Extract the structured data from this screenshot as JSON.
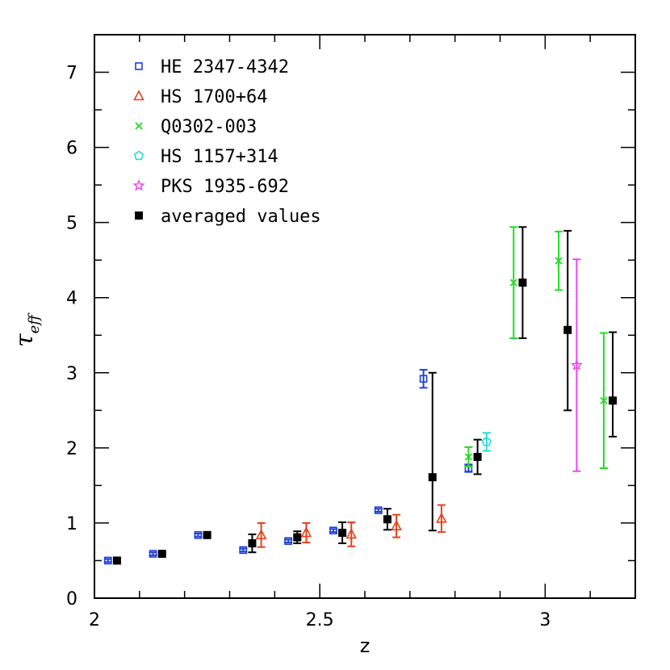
{
  "chart_data": {
    "type": "scatter",
    "title": "",
    "xlabel": "z",
    "ylabel": "τ",
    "ylabel_subscript": "eff",
    "xlim": [
      2.0,
      3.2
    ],
    "ylim": [
      0,
      7.5
    ],
    "x_ticks": [
      2,
      2.5,
      3
    ],
    "x_tick_labels": [
      "2",
      "2.5",
      "3"
    ],
    "y_ticks": [
      0,
      1,
      2,
      3,
      4,
      5,
      6,
      7
    ],
    "y_tick_labels": [
      "0",
      "1",
      "2",
      "3",
      "4",
      "5",
      "6",
      "7"
    ],
    "legend_position": "top-left",
    "series": [
      {
        "name": "HE 2347-4342",
        "color": "#1f3fd8",
        "marker": "open-square",
        "points": [
          {
            "x": 2.03,
            "y": 0.5,
            "err": 0.02
          },
          {
            "x": 2.13,
            "y": 0.59,
            "err": 0.02
          },
          {
            "x": 2.23,
            "y": 0.84,
            "err": 0.02
          },
          {
            "x": 2.33,
            "y": 0.64,
            "err": 0.02
          },
          {
            "x": 2.43,
            "y": 0.76,
            "err": 0.02
          },
          {
            "x": 2.53,
            "y": 0.9,
            "err": 0.02
          },
          {
            "x": 2.63,
            "y": 1.17,
            "err": 0.02
          },
          {
            "x": 2.73,
            "y": 2.92,
            "err": 0.12
          },
          {
            "x": 2.83,
            "y": 1.73,
            "err": 0.05
          }
        ]
      },
      {
        "name": "HS 1700+64",
        "color": "#e8401c",
        "marker": "open-triangle",
        "points": [
          {
            "x": 2.37,
            "y": 0.84,
            "err": 0.16
          },
          {
            "x": 2.47,
            "y": 0.87,
            "err": 0.13
          },
          {
            "x": 2.57,
            "y": 0.85,
            "err": 0.16
          },
          {
            "x": 2.67,
            "y": 0.96,
            "err": 0.15
          },
          {
            "x": 2.77,
            "y": 1.06,
            "err": 0.18
          }
        ]
      },
      {
        "name": "Q0302-003",
        "color": "#22dd22",
        "marker": "cross",
        "points": [
          {
            "x": 2.83,
            "y": 1.88,
            "err": 0.13
          },
          {
            "x": 2.93,
            "y": 4.2,
            "err": 0.74
          },
          {
            "x": 3.03,
            "y": 4.49,
            "err": 0.39
          },
          {
            "x": 3.13,
            "y": 2.63,
            "err": 0.9
          }
        ]
      },
      {
        "name": "HS 1157+314",
        "color": "#22dddd",
        "marker": "open-pentagon",
        "points": [
          {
            "x": 2.87,
            "y": 2.08,
            "err": 0.12
          }
        ]
      },
      {
        "name": "PKS 1935-692",
        "color": "#ee44ee",
        "marker": "open-star",
        "points": [
          {
            "x": 3.07,
            "y": 3.1,
            "err": 1.41
          }
        ]
      },
      {
        "name": "averaged values",
        "color": "#000000",
        "marker": "filled-square",
        "points": [
          {
            "x": 2.05,
            "y": 0.5,
            "err": 0.02
          },
          {
            "x": 2.15,
            "y": 0.59,
            "err": 0.02
          },
          {
            "x": 2.25,
            "y": 0.84,
            "err": 0.02
          },
          {
            "x": 2.35,
            "y": 0.73,
            "err": 0.12
          },
          {
            "x": 2.45,
            "y": 0.81,
            "err": 0.08
          },
          {
            "x": 2.55,
            "y": 0.87,
            "err": 0.14
          },
          {
            "x": 2.65,
            "y": 1.05,
            "err": 0.14
          },
          {
            "x": 2.75,
            "y": 1.61,
            "elo": 0.71,
            "ehi": 1.39
          },
          {
            "x": 2.85,
            "y": 1.88,
            "err": 0.23
          },
          {
            "x": 2.95,
            "y": 4.2,
            "err": 0.74
          },
          {
            "x": 3.05,
            "y": 3.57,
            "elo": 1.07,
            "ehi": 1.32
          },
          {
            "x": 3.15,
            "y": 2.63,
            "elo": 0.48,
            "ehi": 0.91
          }
        ]
      }
    ]
  }
}
